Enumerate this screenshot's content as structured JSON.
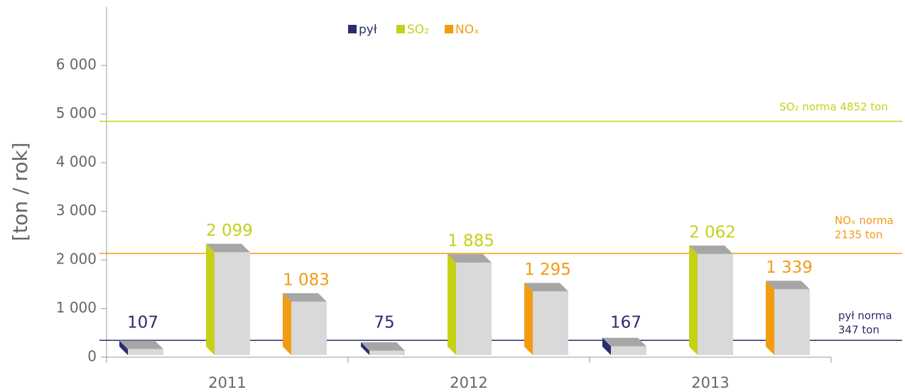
{
  "chart_data": {
    "type": "bar3d",
    "y_label": "[ton / rok]",
    "categories": [
      "2011",
      "2012",
      "2013"
    ],
    "series": [
      {
        "name": "pył",
        "color": "#2b2d6e",
        "values": [
          107,
          75,
          167
        ],
        "value_labels": [
          "107",
          "75",
          "167"
        ]
      },
      {
        "name": "SO₂",
        "color": "#c5d117",
        "values": [
          2099,
          1885,
          2062
        ],
        "value_labels": [
          "2 099",
          "1 885",
          "2 062"
        ]
      },
      {
        "name": "NOₓ",
        "color": "#f39c12",
        "values": [
          1083,
          1295,
          1339
        ],
        "value_labels": [
          "1 083",
          "1 295",
          "1 339"
        ]
      }
    ],
    "reference_lines": [
      {
        "label": [
          "SO₂ norma 4852 ton"
        ],
        "value": 4852,
        "color": "#c5d117"
      },
      {
        "label": [
          "NOₓ norma",
          "2135 ton"
        ],
        "value": 2135,
        "color": "#f39c12"
      },
      {
        "label": [
          "pył norma",
          "347 ton"
        ],
        "value": 347,
        "color": "#2b2d6e"
      }
    ],
    "ylim": [
      0,
      7200
    ],
    "yticks": [
      {
        "value": 0,
        "label": "0"
      },
      {
        "value": 1000,
        "label": "1 000"
      },
      {
        "value": 2000,
        "label": "2 000"
      },
      {
        "value": 3000,
        "label": "3 000"
      },
      {
        "value": 4000,
        "label": "4 000"
      },
      {
        "value": 5000,
        "label": "5 000"
      },
      {
        "value": 6000,
        "label": "6 000"
      }
    ]
  }
}
